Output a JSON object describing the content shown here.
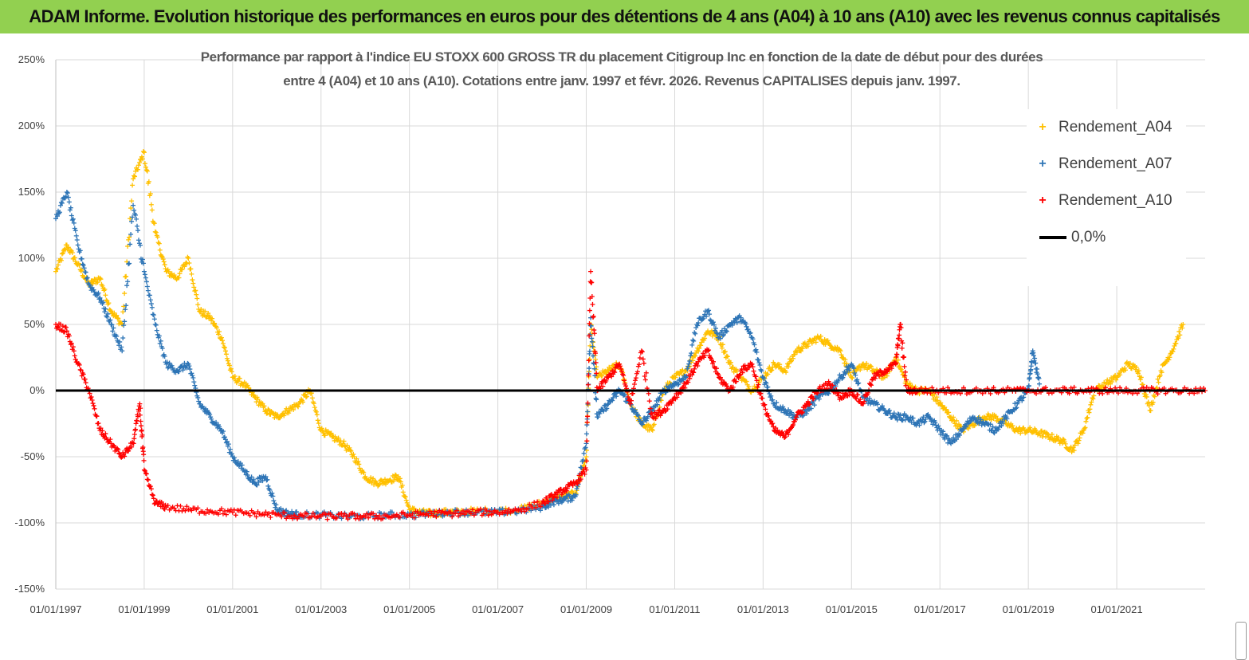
{
  "banner": {
    "title": "ADAM Informe. Evolution historique des performances en euros pour des détentions de 4 ans (A04) à 10 ans (A10) avec les revenus connus capitalisés"
  },
  "colors": {
    "banner_bg": "#92d050",
    "A04": "#ffc000",
    "A07": "#2e75b6",
    "A10": "#ff0000",
    "zero": "#000000",
    "grid": "#d9d9d9"
  },
  "chart_data": {
    "type": "scatter",
    "title_line1": "Performance par rapport à l'indice EU STOXX 600 GROSS TR  du placement Citigroup Inc en fonction de la date de début pour des durées",
    "title_line2": "entre 4 (A04) et 10 ans (A10). Cotations entre janv. 1997 et févr. 2026. Revenus CAPITALISES depuis janv. 1997.",
    "xlabel": "",
    "ylabel": "",
    "xlim": [
      1997.0,
      2023.0
    ],
    "ylim": [
      -150,
      250
    ],
    "y_ticks": [
      -150,
      -100,
      -50,
      0,
      50,
      100,
      150,
      200,
      250
    ],
    "y_tick_labels": [
      "-150%",
      "-100%",
      "-50%",
      "0%",
      "50%",
      "100%",
      "150%",
      "200%",
      "250%"
    ],
    "x_ticks": [
      1997,
      1999,
      2001,
      2003,
      2005,
      2007,
      2009,
      2011,
      2013,
      2015,
      2017,
      2019,
      2021
    ],
    "x_tick_labels": [
      "01/01/1997",
      "01/01/1999",
      "01/01/2001",
      "01/01/2003",
      "01/01/2005",
      "01/01/2007",
      "01/01/2009",
      "01/01/2011",
      "01/01/2013",
      "01/01/2015",
      "01/01/2017",
      "01/01/2019",
      "01/01/2021"
    ],
    "legend_position": "top-right",
    "series": [
      {
        "name": "Rendement_A04",
        "marker": "+",
        "color": "#ffc000",
        "x": [
          1997.0,
          1997.25,
          1997.5,
          1997.75,
          1998.0,
          1998.25,
          1998.5,
          1998.75,
          1999.0,
          1999.25,
          1999.5,
          1999.75,
          2000.0,
          2000.25,
          2000.5,
          2000.75,
          2001.0,
          2001.25,
          2001.5,
          2001.75,
          2002.0,
          2002.25,
          2002.5,
          2002.75,
          2003.0,
          2003.25,
          2003.5,
          2003.75,
          2004.0,
          2004.25,
          2004.5,
          2004.75,
          2005.0,
          2005.25,
          2005.5,
          2005.75,
          2006.0,
          2006.5,
          2007.0,
          2007.5,
          2008.0,
          2008.25,
          2008.5,
          2008.75,
          2009.0,
          2009.1,
          2009.25,
          2009.5,
          2009.75,
          2010.0,
          2010.25,
          2010.5,
          2010.75,
          2011.0,
          2011.25,
          2011.5,
          2011.75,
          2012.0,
          2012.25,
          2012.5,
          2012.75,
          2013.0,
          2013.25,
          2013.5,
          2013.75,
          2014.0,
          2014.25,
          2014.5,
          2014.75,
          2015.0,
          2015.25,
          2015.5,
          2015.75,
          2016.0,
          2016.25,
          2016.5,
          2016.75,
          2017.0,
          2017.25,
          2017.5,
          2017.75,
          2018.0,
          2018.25,
          2018.5,
          2018.75,
          2019.0,
          2019.25,
          2019.5,
          2019.75,
          2020.0,
          2020.25,
          2020.5,
          2020.75,
          2021.0,
          2021.25,
          2021.5,
          2021.75,
          2022.0,
          2022.25,
          2022.5
        ],
        "y": [
          90,
          110,
          95,
          80,
          85,
          60,
          50,
          160,
          180,
          120,
          90,
          85,
          100,
          60,
          55,
          40,
          10,
          5,
          -5,
          -15,
          -20,
          -15,
          -10,
          0,
          -30,
          -35,
          -40,
          -50,
          -65,
          -70,
          -68,
          -65,
          -90,
          -92,
          -93,
          -92,
          -92,
          -91,
          -91,
          -90,
          -85,
          -82,
          -80,
          -78,
          -50,
          50,
          10,
          15,
          20,
          -10,
          -25,
          -30,
          0,
          10,
          15,
          30,
          45,
          40,
          20,
          10,
          0,
          10,
          20,
          15,
          30,
          35,
          40,
          35,
          30,
          10,
          20,
          15,
          10,
          25,
          5,
          0,
          0,
          -10,
          -20,
          -30,
          -25,
          -20,
          -20,
          -25,
          -30,
          -30,
          -32,
          -35,
          -38,
          -45,
          -30,
          0,
          5,
          10,
          20,
          15,
          -15,
          15,
          30,
          50
        ]
      },
      {
        "name": "Rendement_A07",
        "marker": "+",
        "color": "#2e75b6",
        "x": [
          1997.0,
          1997.25,
          1997.5,
          1997.75,
          1998.0,
          1998.25,
          1998.5,
          1998.75,
          1999.0,
          1999.25,
          1999.5,
          1999.75,
          2000.0,
          2000.25,
          2000.5,
          2000.75,
          2001.0,
          2001.25,
          2001.5,
          2001.75,
          2002.0,
          2002.25,
          2002.5,
          2003.0,
          2003.5,
          2004.0,
          2004.5,
          2005.0,
          2005.5,
          2006.0,
          2006.5,
          2007.0,
          2007.5,
          2008.0,
          2008.25,
          2008.5,
          2008.75,
          2009.0,
          2009.1,
          2009.25,
          2009.5,
          2009.75,
          2010.0,
          2010.25,
          2010.5,
          2010.75,
          2011.0,
          2011.25,
          2011.5,
          2011.75,
          2012.0,
          2012.25,
          2012.5,
          2012.75,
          2013.0,
          2013.25,
          2013.5,
          2013.75,
          2014.0,
          2014.25,
          2014.5,
          2014.75,
          2015.0,
          2015.25,
          2015.5,
          2015.75,
          2016.0,
          2016.25,
          2016.5,
          2016.75,
          2017.0,
          2017.25,
          2017.5,
          2017.75,
          2018.0,
          2018.25,
          2018.5,
          2018.75,
          2019.0,
          2019.1,
          2019.25
        ],
        "y": [
          130,
          150,
          110,
          80,
          70,
          50,
          30,
          140,
          90,
          50,
          20,
          15,
          20,
          -10,
          -20,
          -30,
          -50,
          -60,
          -70,
          -65,
          -90,
          -93,
          -94,
          -94,
          -95,
          -95,
          -94,
          -94,
          -93,
          -92,
          -92,
          -92,
          -91,
          -88,
          -84,
          -82,
          -80,
          -40,
          55,
          -20,
          -10,
          0,
          -10,
          -25,
          -15,
          0,
          5,
          10,
          50,
          60,
          40,
          50,
          55,
          40,
          10,
          -10,
          -15,
          -20,
          -15,
          -5,
          0,
          10,
          20,
          -5,
          -10,
          -15,
          -20,
          -20,
          -25,
          -20,
          -30,
          -40,
          -30,
          -20,
          -25,
          -30,
          -20,
          -10,
          0,
          30,
          5
        ]
      },
      {
        "name": "Rendement_A10",
        "marker": "+",
        "color": "#ff0000",
        "x": [
          1997.0,
          1997.25,
          1997.5,
          1997.75,
          1998.0,
          1998.25,
          1998.5,
          1998.75,
          1998.9,
          1999.0,
          1999.25,
          1999.5,
          2000.0,
          2000.5,
          2001.0,
          2001.5,
          2002.0,
          2002.5,
          2003.0,
          2003.5,
          2004.0,
          2004.5,
          2005.0,
          2005.5,
          2006.0,
          2006.5,
          2007.0,
          2007.5,
          2008.0,
          2008.25,
          2008.5,
          2008.75,
          2009.0,
          2009.1,
          2009.25,
          2009.5,
          2009.75,
          2010.0,
          2010.25,
          2010.5,
          2010.75,
          2011.0,
          2011.25,
          2011.5,
          2011.75,
          2012.0,
          2012.25,
          2012.5,
          2012.75,
          2013.0,
          2013.25,
          2013.5,
          2013.75,
          2014.0,
          2014.25,
          2014.5,
          2014.75,
          2015.0,
          2015.25,
          2015.5,
          2015.75,
          2016.0,
          2016.1,
          2016.25,
          2016.5,
          2017.0,
          2017.5,
          2018.0,
          2018.5,
          2019.0,
          2019.5,
          2020.0,
          2020.5,
          2021.0,
          2021.5,
          2022.0,
          2022.5,
          2023.0
        ],
        "y": [
          50,
          45,
          20,
          0,
          -30,
          -40,
          -50,
          -40,
          -10,
          -60,
          -85,
          -88,
          -90,
          -91,
          -92,
          -93,
          -94,
          -95,
          -95,
          -95,
          -95,
          -95,
          -94,
          -93,
          -93,
          -92,
          -92,
          -90,
          -85,
          -80,
          -75,
          -70,
          -60,
          90,
          0,
          10,
          20,
          -10,
          30,
          -20,
          -15,
          -5,
          5,
          20,
          30,
          10,
          0,
          15,
          20,
          -10,
          -30,
          -35,
          -20,
          -10,
          0,
          5,
          -5,
          0,
          -10,
          10,
          15,
          20,
          50,
          0,
          0,
          0,
          0,
          0,
          0,
          0,
          0,
          0,
          0,
          0,
          0,
          0,
          0,
          0
        ]
      }
    ],
    "reference_line": {
      "name": "0,0%",
      "y": 0
    }
  }
}
